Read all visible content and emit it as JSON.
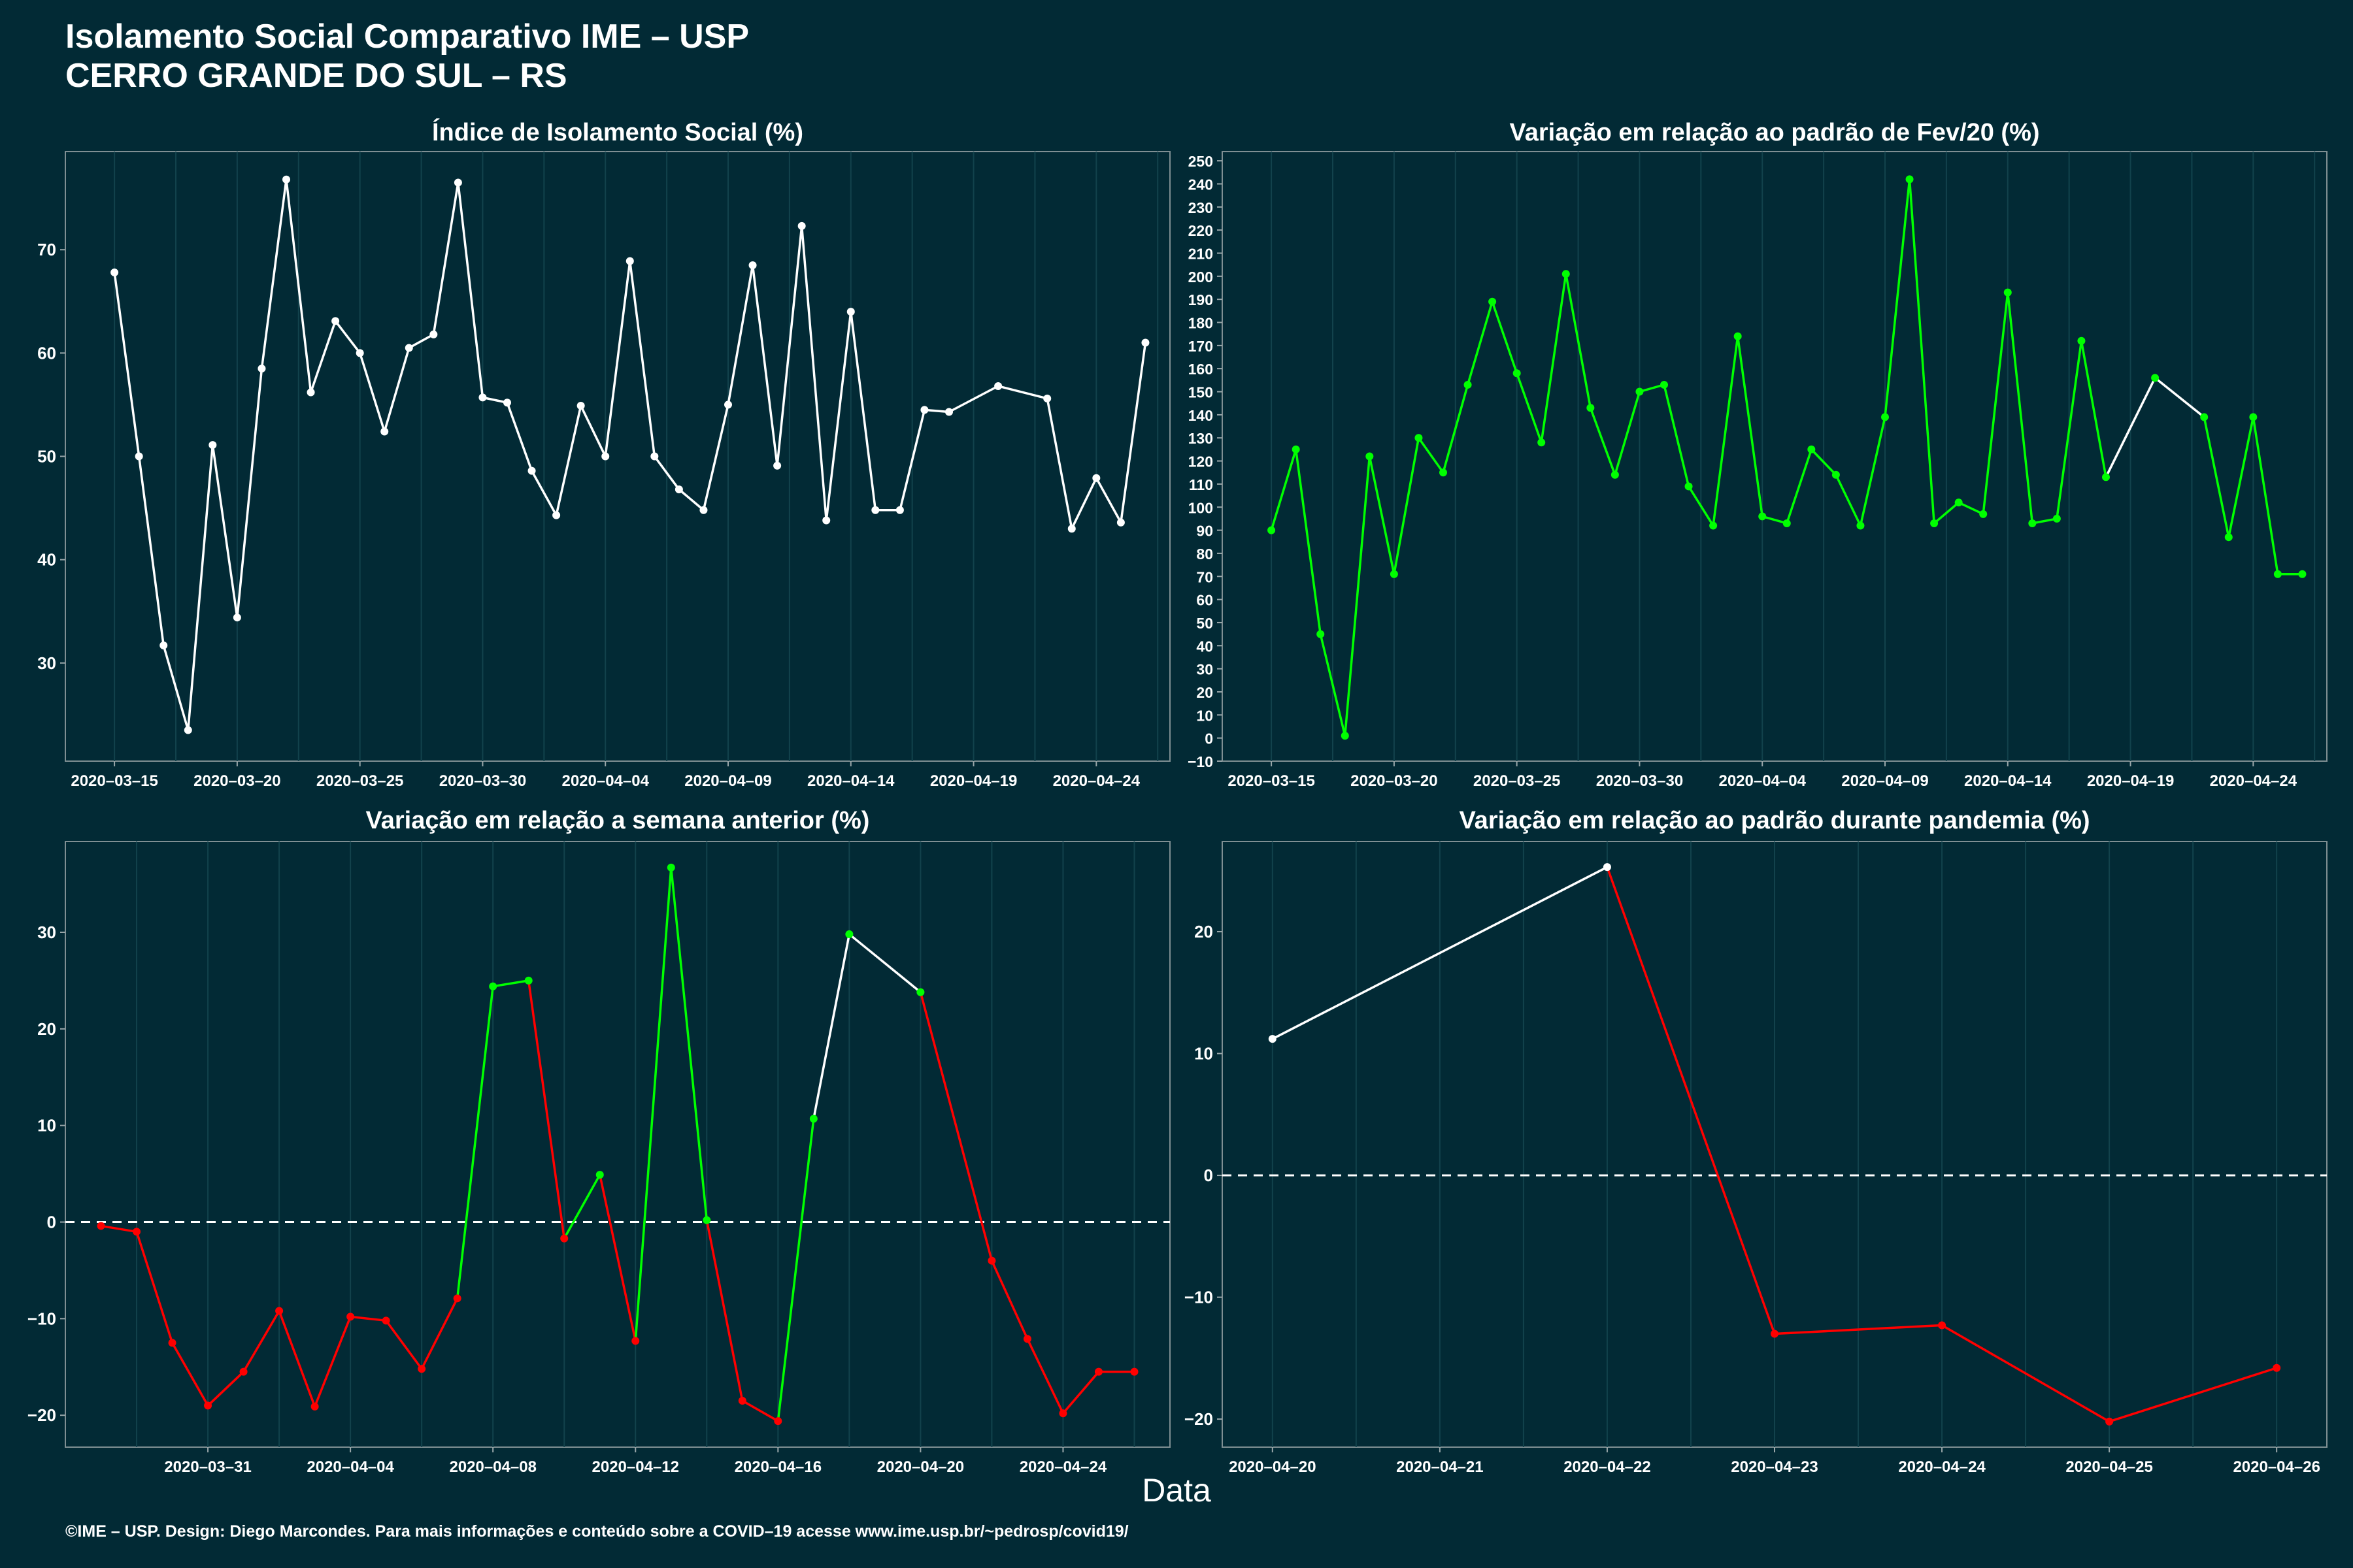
{
  "title": {
    "line1": "Isolamento Social Comparativo IME – USP",
    "line2": "CERRO GRANDE DO SUL – RS"
  },
  "x_axis_label": "Data",
  "footer": "©IME – USP. Design: Diego Marcondes. Para mais informações e conteúdo sobre a COVID–19 acesse www.ime.usp.br/~pedrosp/covid19/",
  "colors": {
    "background": "#022a35",
    "neutral": "#ffffff",
    "positive": "#00ff00",
    "negative": "#ff0000"
  },
  "chart_data": [
    {
      "type": "line",
      "title": "Índice de Isolamento Social (%)",
      "x_type": "date",
      "x": [
        "2020-03-15",
        "2020-03-16",
        "2020-03-17",
        "2020-03-18",
        "2020-03-19",
        "2020-03-20",
        "2020-03-21",
        "2020-03-22",
        "2020-03-23",
        "2020-03-24",
        "2020-03-25",
        "2020-03-26",
        "2020-03-27",
        "2020-03-28",
        "2020-03-29",
        "2020-03-30",
        "2020-03-31",
        "2020-04-01",
        "2020-04-02",
        "2020-04-03",
        "2020-04-04",
        "2020-04-05",
        "2020-04-06",
        "2020-04-07",
        "2020-04-08",
        "2020-04-09",
        "2020-04-10",
        "2020-04-11",
        "2020-04-12",
        "2020-04-13",
        "2020-04-14",
        "2020-04-15",
        "2020-04-16",
        "2020-04-17",
        "2020-04-18",
        "2020-04-20",
        "2020-04-22",
        "2020-04-23",
        "2020-04-24",
        "2020-04-25",
        "2020-04-26"
      ],
      "y": [
        67.8,
        50.0,
        31.7,
        23.5,
        51.1,
        34.4,
        58.5,
        76.8,
        56.2,
        63.1,
        60.0,
        52.4,
        60.5,
        61.8,
        76.5,
        55.7,
        55.2,
        48.6,
        44.3,
        54.9,
        50.0,
        68.9,
        50.0,
        46.8,
        44.8,
        55.0,
        68.5,
        49.1,
        72.3,
        43.8,
        64.0,
        44.8,
        44.8,
        54.5,
        54.3,
        56.8,
        55.6,
        43.0,
        47.9,
        43.6,
        61.0
      ],
      "segment_colors": [
        "neutral"
      ],
      "xlim": [
        "2020-03-13",
        "2020-04-27"
      ],
      "ylim": [
        20.5,
        79.5
      ],
      "x_ticks": [
        "2020-03-15",
        "2020-03-20",
        "2020-03-25",
        "2020-03-30",
        "2020-04-04",
        "2020-04-09",
        "2020-04-14",
        "2020-04-19",
        "2020-04-24"
      ],
      "y_ticks": [
        30,
        40,
        50,
        60,
        70
      ],
      "grid": true
    },
    {
      "type": "line",
      "title": "Variação em relação ao padrão de Fev/20 (%)",
      "x_type": "date",
      "x": [
        "2020-03-15",
        "2020-03-16",
        "2020-03-17",
        "2020-03-18",
        "2020-03-19",
        "2020-03-20",
        "2020-03-21",
        "2020-03-22",
        "2020-03-23",
        "2020-03-24",
        "2020-03-25",
        "2020-03-26",
        "2020-03-27",
        "2020-03-28",
        "2020-03-29",
        "2020-03-30",
        "2020-03-31",
        "2020-04-01",
        "2020-04-02",
        "2020-04-03",
        "2020-04-04",
        "2020-04-05",
        "2020-04-06",
        "2020-04-07",
        "2020-04-08",
        "2020-04-09",
        "2020-04-10",
        "2020-04-11",
        "2020-04-12",
        "2020-04-13",
        "2020-04-14",
        "2020-04-15",
        "2020-04-16",
        "2020-04-17",
        "2020-04-18",
        "2020-04-20",
        "2020-04-22",
        "2020-04-23",
        "2020-04-24",
        "2020-04-25",
        "2020-04-26"
      ],
      "y": [
        90,
        125,
        45,
        1,
        122,
        71,
        130,
        115,
        153,
        189,
        158,
        128,
        201,
        143,
        114,
        150,
        153,
        109,
        92,
        174,
        96,
        93,
        125,
        114,
        92,
        139,
        242,
        93,
        102,
        97,
        193,
        93,
        95,
        172,
        113,
        156,
        139,
        87,
        139,
        71,
        71
      ],
      "point_color": "positive",
      "segment_colors": [
        "positive"
      ],
      "segment_overrides": {
        "34": "neutral",
        "35": "neutral"
      },
      "xlim": [
        "2020-03-13",
        "2020-04-27"
      ],
      "ylim": [
        -10,
        254
      ],
      "x_ticks": [
        "2020-03-15",
        "2020-03-20",
        "2020-03-25",
        "2020-03-30",
        "2020-04-04",
        "2020-04-09",
        "2020-04-14",
        "2020-04-19",
        "2020-04-24"
      ],
      "y_ticks": [
        -10,
        0,
        10,
        20,
        30,
        40,
        50,
        60,
        70,
        80,
        90,
        100,
        110,
        120,
        130,
        140,
        150,
        160,
        170,
        180,
        190,
        200,
        210,
        220,
        230,
        240,
        250
      ],
      "grid": true
    },
    {
      "type": "line",
      "title": "Variação em relação a semana anterior (%)",
      "x_type": "date",
      "x": [
        "2020-03-28",
        "2020-03-29",
        "2020-03-30",
        "2020-03-31",
        "2020-04-01",
        "2020-04-02",
        "2020-04-03",
        "2020-04-04",
        "2020-04-05",
        "2020-04-06",
        "2020-04-07",
        "2020-04-08",
        "2020-04-09",
        "2020-04-10",
        "2020-04-11",
        "2020-04-12",
        "2020-04-13",
        "2020-04-14",
        "2020-04-15",
        "2020-04-16",
        "2020-04-17",
        "2020-04-18",
        "2020-04-20",
        "2020-04-22",
        "2020-04-23",
        "2020-04-24",
        "2020-04-25",
        "2020-04-26"
      ],
      "y": [
        -0.4,
        -1.0,
        -12.5,
        -19.0,
        -15.5,
        -9.2,
        -19.1,
        -9.8,
        -10.2,
        -15.2,
        -7.9,
        24.4,
        25.0,
        -1.7,
        4.9,
        -12.3,
        36.7,
        0.2,
        -18.5,
        -20.6,
        10.7,
        29.8,
        23.8,
        -4.0,
        -12.1,
        -19.8,
        -15.5,
        -15.5
      ],
      "point_colors": [
        "negative",
        "negative",
        "negative",
        "negative",
        "negative",
        "negative",
        "negative",
        "negative",
        "negative",
        "negative",
        "negative",
        "positive",
        "positive",
        "negative",
        "positive",
        "negative",
        "positive",
        "positive",
        "negative",
        "negative",
        "positive",
        "positive",
        "positive",
        "negative",
        "negative",
        "negative",
        "negative",
        "negative"
      ],
      "segment_colors": [
        "negative",
        "negative",
        "negative",
        "negative",
        "negative",
        "negative",
        "negative",
        "negative",
        "negative",
        "negative",
        "positive",
        "positive",
        "negative",
        "positive",
        "negative",
        "positive",
        "positive",
        "negative",
        "negative",
        "positive",
        "neutral",
        "neutral",
        "negative",
        "negative",
        "negative",
        "negative",
        "negative"
      ],
      "xlim": [
        "2020-03-27",
        "2020-04-27"
      ],
      "ylim": [
        -23.3,
        39.4
      ],
      "x_ticks": [
        "2020-03-31",
        "2020-04-04",
        "2020-04-08",
        "2020-04-12",
        "2020-04-16",
        "2020-04-20",
        "2020-04-24"
      ],
      "y_ticks": [
        -20,
        -10,
        0,
        10,
        20,
        30
      ],
      "reference_line": 0,
      "grid": true
    },
    {
      "type": "line",
      "title": "Variação em relação ao padrão durante pandemia (%)",
      "x_type": "date",
      "x": [
        "2020-04-20",
        "2020-04-22",
        "2020-04-23",
        "2020-04-24",
        "2020-04-25",
        "2020-04-26"
      ],
      "y": [
        11.2,
        25.3,
        -13.0,
        -12.3,
        -20.2,
        -15.8
      ],
      "point_colors": [
        "neutral",
        "neutral",
        "negative",
        "negative",
        "negative",
        "negative"
      ],
      "segment_colors": [
        "neutral",
        "negative",
        "negative",
        "negative",
        "negative"
      ],
      "xlim": [
        "2020-04-19.7",
        "2020-04-26.3"
      ],
      "ylim": [
        -22.3,
        27.4
      ],
      "x_ticks": [
        "2020-04-20",
        "2020-04-21",
        "2020-04-22",
        "2020-04-23",
        "2020-04-24",
        "2020-04-25",
        "2020-04-26"
      ],
      "y_ticks": [
        -20,
        -10,
        0,
        10,
        20
      ],
      "reference_line": 0,
      "grid": true
    }
  ]
}
